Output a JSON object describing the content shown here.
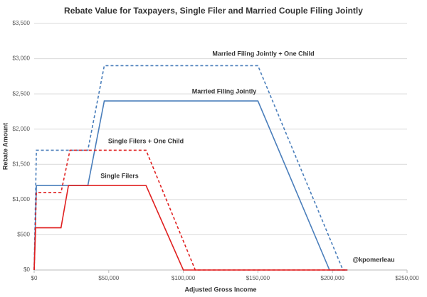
{
  "chart_data": {
    "type": "line",
    "title": "Rebate Value for Taxpayers, Single Filer and Married Couple Filing Jointly",
    "x_label": "Adjusted Gross Income",
    "y_label": "Rebate Amount",
    "annotation": "@kpomerleau",
    "xlim": [
      0,
      250000
    ],
    "ylim": [
      0,
      3500
    ],
    "xticks": [
      {
        "value": 0,
        "label": "$0"
      },
      {
        "value": 50000,
        "label": "$50,000"
      },
      {
        "value": 100000,
        "label": "$100,000"
      },
      {
        "value": 150000,
        "label": "$150,000"
      },
      {
        "value": 200000,
        "label": "$200,000"
      },
      {
        "value": 250000,
        "label": "$250,000"
      }
    ],
    "yticks": [
      {
        "value": 0,
        "label": "$0"
      },
      {
        "value": 500,
        "label": "$500"
      },
      {
        "value": 1000,
        "label": "$1,000"
      },
      {
        "value": 1500,
        "label": "$1,500"
      },
      {
        "value": 2000,
        "label": "$2,000"
      },
      {
        "value": 2500,
        "label": "$2,500"
      },
      {
        "value": 3000,
        "label": "$3,000"
      },
      {
        "value": 3500,
        "label": "$3,500"
      }
    ],
    "grid": true,
    "series": [
      {
        "name": "Married Filing Jointly + One Child",
        "color": "#4a7ebb",
        "dashed": true,
        "x": [
          0,
          1500,
          36000,
          47000,
          150000,
          207000,
          210000
        ],
        "values": [
          0,
          1700,
          1700,
          2900,
          2900,
          0,
          0
        ]
      },
      {
        "name": "Married Filing Jointly",
        "color": "#4a7ebb",
        "dashed": false,
        "x": [
          0,
          1500,
          36000,
          47000,
          150000,
          198000,
          210000
        ],
        "values": [
          0,
          1200,
          1200,
          2400,
          2400,
          0,
          0
        ]
      },
      {
        "name": "Single Filers + One Child",
        "color": "#e02020",
        "dashed": true,
        "x": [
          0,
          1500,
          18000,
          24000,
          75000,
          108000,
          210000
        ],
        "values": [
          0,
          1100,
          1100,
          1700,
          1700,
          0,
          0
        ]
      },
      {
        "name": "Single Filers",
        "color": "#e02020",
        "dashed": false,
        "x": [
          0,
          1000,
          18000,
          23000,
          75000,
          100000,
          210000
        ],
        "values": [
          0,
          600,
          600,
          1200,
          1200,
          0,
          0
        ]
      }
    ]
  }
}
